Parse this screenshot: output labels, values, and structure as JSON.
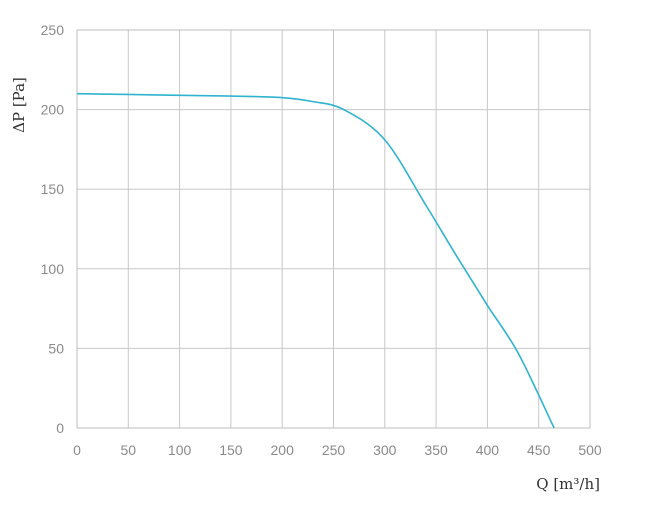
{
  "chart_data": {
    "type": "line",
    "title": "",
    "xlabel": "Q [m³/h]",
    "ylabel": "ΔP [Pa]",
    "xlim": [
      0,
      500
    ],
    "ylim": [
      0,
      250
    ],
    "grid": true,
    "x_ticks": [
      0,
      50,
      100,
      150,
      200,
      250,
      300,
      350,
      400,
      450,
      500
    ],
    "y_ticks": [
      0,
      50,
      100,
      150,
      200,
      250
    ],
    "series": [
      {
        "color": "#2fb3cf",
        "x": [
          0,
          50,
          100,
          150,
          200,
          230,
          260,
          300,
          340,
          370,
          400,
          430,
          465
        ],
        "y": [
          210,
          209.5,
          209,
          208.5,
          207.5,
          205,
          200,
          181,
          140,
          108,
          77,
          47,
          0
        ]
      }
    ]
  }
}
